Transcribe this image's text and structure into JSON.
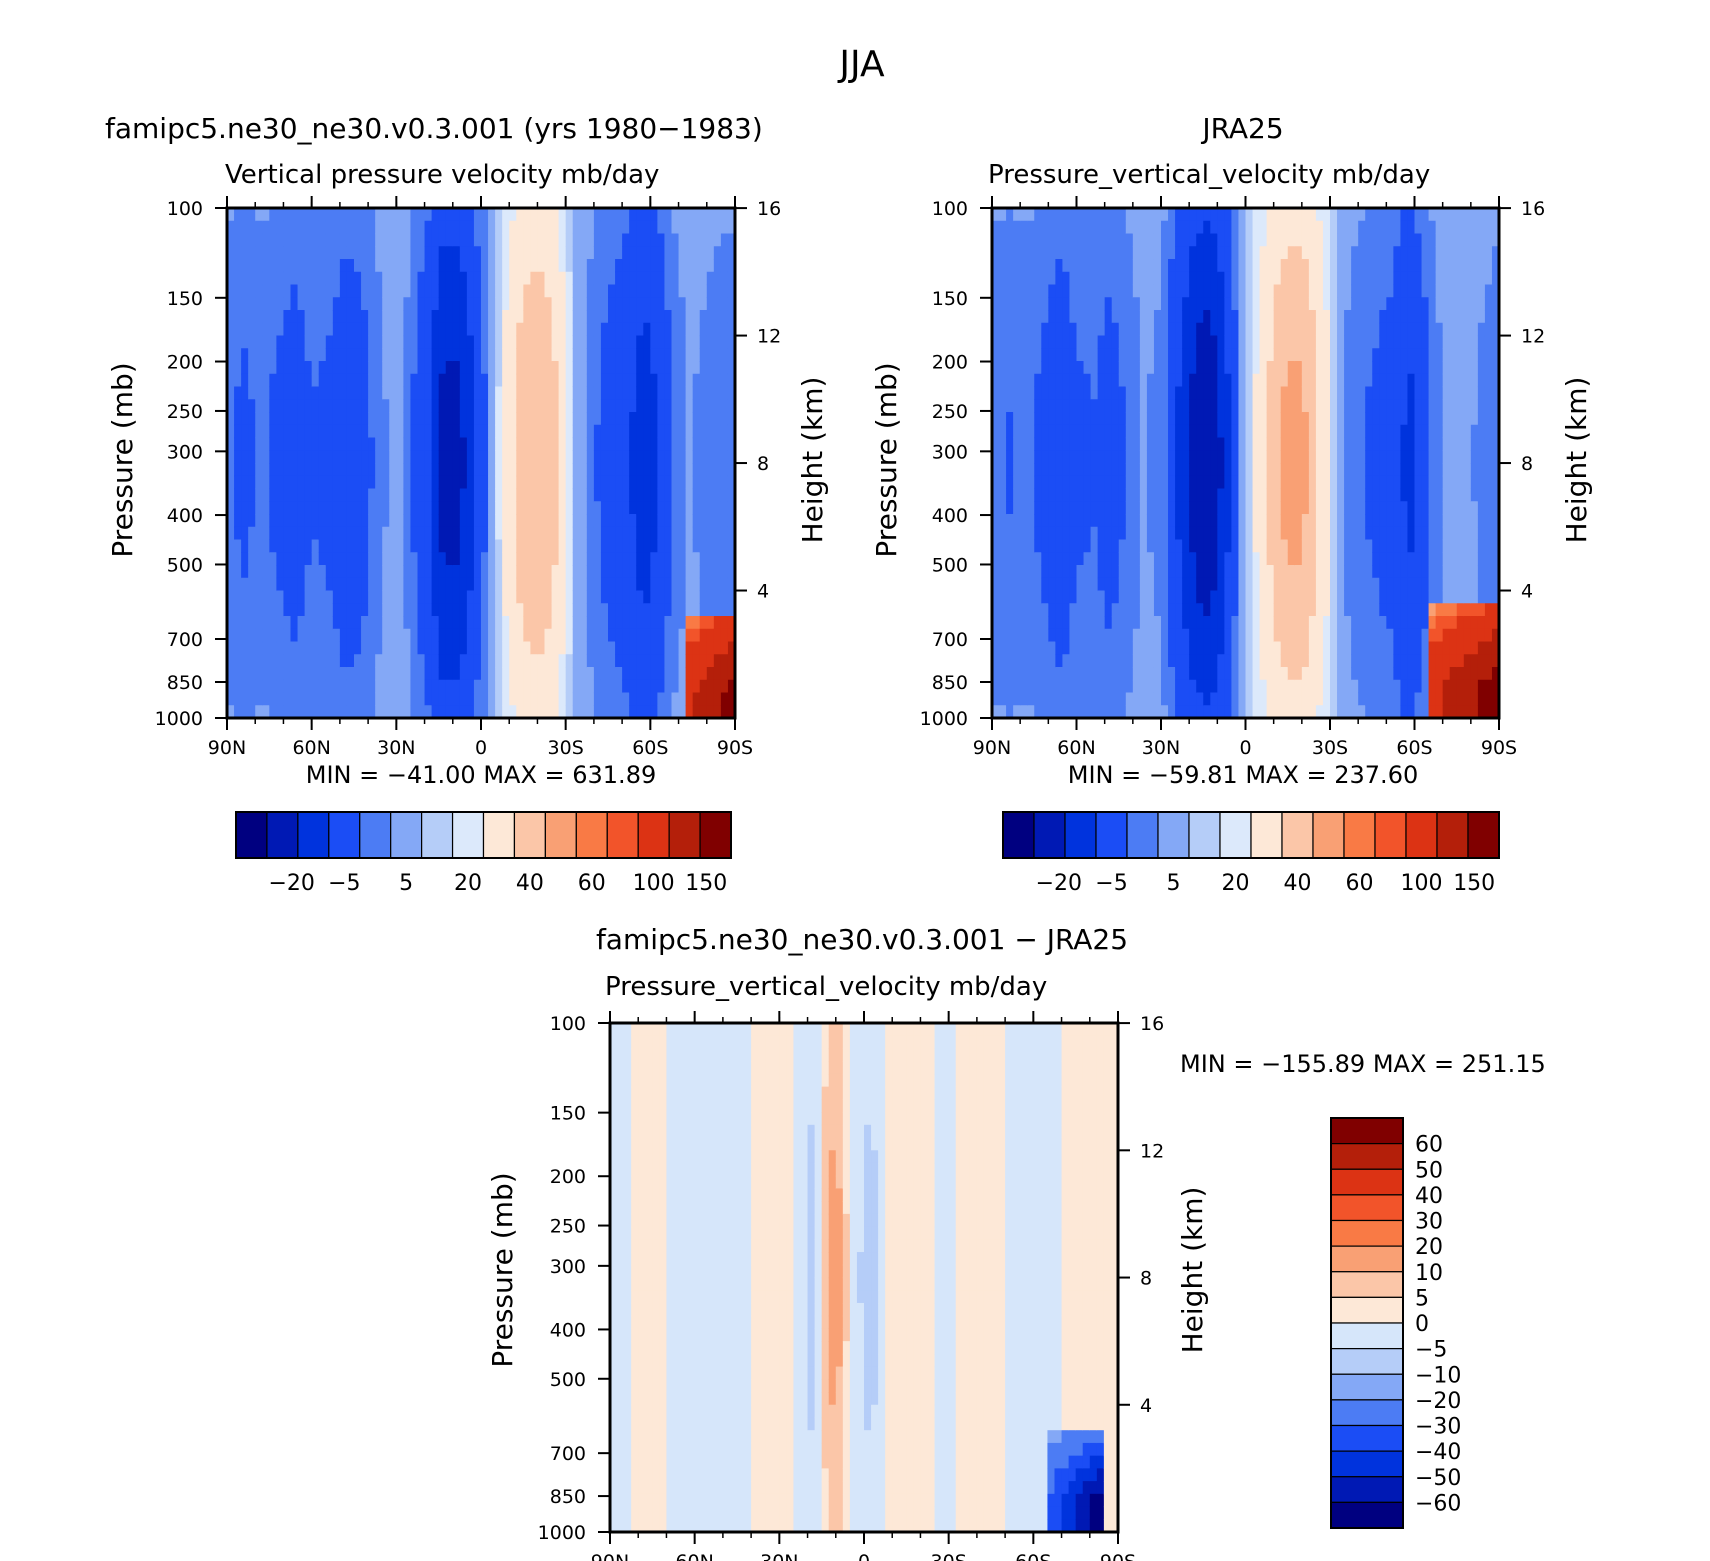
{
  "figure": {
    "title": "JJA"
  },
  "colors": {
    "main_scale": [
      "#000080",
      "#0019b4",
      "#0033dd",
      "#1b4df5",
      "#4c7cf4",
      "#84a8f6",
      "#b5cdf8",
      "#dce9fb",
      "#fde8d7",
      "#fbc6a8",
      "#f9a074",
      "#f97a45",
      "#f2542a",
      "#dc3314",
      "#b41f0a",
      "#800000"
    ],
    "diff_scale": [
      "#000080",
      "#0019b4",
      "#0033dd",
      "#1b4df5",
      "#4c7cf4",
      "#84a8f6",
      "#b5cdf8",
      "#d6e6fa",
      "#fde8d7",
      "#fbc6a8",
      "#f9a074",
      "#f97a45",
      "#f2542a",
      "#dc3314",
      "#b41f0a",
      "#800000"
    ]
  },
  "chart_data": [
    {
      "type": "heatmap",
      "title": "famipc5.ne30_ne30.v0.3.001 (yrs 1980−1983)",
      "subtitle": "Vertical pressure velocity   mb/day",
      "xlabel": "",
      "ylabel": "Pressure (mb)",
      "ylabel_right": "Height (km)",
      "x_ticks": [
        "90N",
        "60N",
        "30N",
        "0",
        "30S",
        "60S",
        "90S"
      ],
      "y_ticks": [
        "100",
        "150",
        "200",
        "250",
        "300",
        "400",
        "500",
        "700",
        "850",
        "1000"
      ],
      "y_ticks_right": [
        "16",
        "12",
        "8",
        "4"
      ],
      "y_scale": "log",
      "ylim": [
        1000,
        100
      ],
      "xlim": [
        90,
        -90
      ],
      "stats": "MIN = −41.00   MAX = 631.89",
      "colorbar_labels": [
        "−20",
        "−5",
        "5",
        "20",
        "40",
        "60",
        "100",
        "150"
      ],
      "colorbar_orientation": "horizontal",
      "profile": [
        {
          "lat": 90,
          "v": -8
        },
        {
          "lat": 84,
          "v": -10
        },
        {
          "lat": 78,
          "v": -8
        },
        {
          "lat": 72,
          "v": -10
        },
        {
          "lat": 66,
          "v": -12
        },
        {
          "lat": 60,
          "v": -9
        },
        {
          "lat": 54,
          "v": -10
        },
        {
          "lat": 48,
          "v": -14
        },
        {
          "lat": 42,
          "v": -12
        },
        {
          "lat": 36,
          "v": -6
        },
        {
          "lat": 30,
          "v": -2
        },
        {
          "lat": 26,
          "v": -6
        },
        {
          "lat": 22,
          "v": -12
        },
        {
          "lat": 18,
          "v": -18
        },
        {
          "lat": 14,
          "v": -28
        },
        {
          "lat": 10,
          "v": -30
        },
        {
          "lat": 6,
          "v": -26
        },
        {
          "lat": 2,
          "v": -16
        },
        {
          "lat": -2,
          "v": -8
        },
        {
          "lat": -6,
          "v": 4
        },
        {
          "lat": -10,
          "v": 14
        },
        {
          "lat": -14,
          "v": 22
        },
        {
          "lat": -18,
          "v": 26
        },
        {
          "lat": -22,
          "v": 26
        },
        {
          "lat": -26,
          "v": 20
        },
        {
          "lat": -30,
          "v": 10
        },
        {
          "lat": -34,
          "v": -2
        },
        {
          "lat": -40,
          "v": -8
        },
        {
          "lat": -46,
          "v": -12
        },
        {
          "lat": -52,
          "v": -16
        },
        {
          "lat": -58,
          "v": -22
        },
        {
          "lat": -62,
          "v": -18
        },
        {
          "lat": -68,
          "v": -8
        },
        {
          "lat": -74,
          "v": -4
        },
        {
          "lat": -80,
          "v": -6
        },
        {
          "lat": -86,
          "v": -8
        },
        {
          "lat": -90,
          "v": -8
        }
      ],
      "polar_feature": {
        "lat_start": -72,
        "lat_end": -90,
        "p_top": 620,
        "v_max": 150,
        "sign": 1
      }
    },
    {
      "type": "heatmap",
      "title": "JRA25",
      "subtitle": "Pressure_vertical_velocity   mb/day",
      "xlabel": "",
      "ylabel": "Pressure (mb)",
      "ylabel_right": "Height (km)",
      "x_ticks": [
        "90N",
        "60N",
        "30N",
        "0",
        "30S",
        "60S",
        "90S"
      ],
      "y_ticks": [
        "100",
        "150",
        "200",
        "250",
        "300",
        "400",
        "500",
        "700",
        "850",
        "1000"
      ],
      "y_ticks_right": [
        "16",
        "12",
        "8",
        "4"
      ],
      "y_scale": "log",
      "ylim": [
        1000,
        100
      ],
      "xlim": [
        90,
        -90
      ],
      "stats": "MIN = −59.81   MAX = 237.60",
      "colorbar_labels": [
        "−20",
        "−5",
        "5",
        "20",
        "40",
        "60",
        "100",
        "150"
      ],
      "colorbar_orientation": "horizontal",
      "profile": [
        {
          "lat": 90,
          "v": -8
        },
        {
          "lat": 84,
          "v": -9
        },
        {
          "lat": 78,
          "v": -8
        },
        {
          "lat": 72,
          "v": -10
        },
        {
          "lat": 66,
          "v": -14
        },
        {
          "lat": 60,
          "v": -10
        },
        {
          "lat": 54,
          "v": -9
        },
        {
          "lat": 48,
          "v": -12
        },
        {
          "lat": 42,
          "v": -8
        },
        {
          "lat": 36,
          "v": -4
        },
        {
          "lat": 30,
          "v": -6
        },
        {
          "lat": 26,
          "v": -14
        },
        {
          "lat": 22,
          "v": -22
        },
        {
          "lat": 18,
          "v": -30
        },
        {
          "lat": 14,
          "v": -34
        },
        {
          "lat": 10,
          "v": -30
        },
        {
          "lat": 6,
          "v": -18
        },
        {
          "lat": 2,
          "v": -6
        },
        {
          "lat": -2,
          "v": 6
        },
        {
          "lat": -6,
          "v": 14
        },
        {
          "lat": -10,
          "v": 22
        },
        {
          "lat": -14,
          "v": 28
        },
        {
          "lat": -18,
          "v": 30
        },
        {
          "lat": -22,
          "v": 26
        },
        {
          "lat": -26,
          "v": 18
        },
        {
          "lat": -30,
          "v": 8
        },
        {
          "lat": -34,
          "v": -4
        },
        {
          "lat": -40,
          "v": -8
        },
        {
          "lat": -46,
          "v": -10
        },
        {
          "lat": -52,
          "v": -12
        },
        {
          "lat": -58,
          "v": -20
        },
        {
          "lat": -62,
          "v": -14
        },
        {
          "lat": -68,
          "v": -6
        },
        {
          "lat": -74,
          "v": 0
        },
        {
          "lat": -80,
          "v": -4
        },
        {
          "lat": -86,
          "v": -6
        },
        {
          "lat": -90,
          "v": -8
        }
      ],
      "polar_feature": {
        "lat_start": -66,
        "lat_end": -90,
        "p_top": 600,
        "v_max": 160,
        "sign": 1
      }
    },
    {
      "type": "heatmap",
      "title": "famipc5.ne30_ne30.v0.3.001 − JRA25",
      "subtitle": "Pressure_vertical_velocity   mb/day",
      "xlabel": "",
      "ylabel": "Pressure (mb)",
      "ylabel_right": "Height (km)",
      "x_ticks": [
        "90N",
        "60N",
        "30N",
        "0",
        "30S",
        "60S",
        "90S"
      ],
      "y_ticks": [
        "100",
        "150",
        "200",
        "250",
        "300",
        "400",
        "500",
        "700",
        "850",
        "1000"
      ],
      "y_ticks_right": [
        "16",
        "12",
        "8",
        "4"
      ],
      "y_scale": "log",
      "ylim": [
        1000,
        100
      ],
      "xlim": [
        90,
        -90
      ],
      "stats": "MIN = −155.89   MAX = 251.15",
      "colorbar_labels": [
        "60",
        "50",
        "40",
        "30",
        "20",
        "10",
        "5",
        "0",
        "−5",
        "−10",
        "−20",
        "−30",
        "−40",
        "−50",
        "−60"
      ],
      "colorbar_orientation": "vertical",
      "profile": [
        {
          "lat": 90,
          "v": -2
        },
        {
          "lat": 84,
          "v": -1
        },
        {
          "lat": 78,
          "v": 2
        },
        {
          "lat": 72,
          "v": 1
        },
        {
          "lat": 66,
          "v": -2
        },
        {
          "lat": 60,
          "v": -1
        },
        {
          "lat": 54,
          "v": -2
        },
        {
          "lat": 48,
          "v": -3
        },
        {
          "lat": 42,
          "v": -2
        },
        {
          "lat": 36,
          "v": 2
        },
        {
          "lat": 30,
          "v": 3
        },
        {
          "lat": 26,
          "v": 2
        },
        {
          "lat": 22,
          "v": -3
        },
        {
          "lat": 18,
          "v": -6
        },
        {
          "lat": 14,
          "v": 6
        },
        {
          "lat": 10,
          "v": 12
        },
        {
          "lat": 6,
          "v": 4
        },
        {
          "lat": 2,
          "v": -4
        },
        {
          "lat": -2,
          "v": -6
        },
        {
          "lat": -6,
          "v": -4
        },
        {
          "lat": -10,
          "v": 2
        },
        {
          "lat": -14,
          "v": 3
        },
        {
          "lat": -18,
          "v": 3
        },
        {
          "lat": -22,
          "v": 2
        },
        {
          "lat": -26,
          "v": -2
        },
        {
          "lat": -30,
          "v": -1
        },
        {
          "lat": -34,
          "v": 2
        },
        {
          "lat": -40,
          "v": 3
        },
        {
          "lat": -46,
          "v": 2
        },
        {
          "lat": -52,
          "v": -2
        },
        {
          "lat": -58,
          "v": -3
        },
        {
          "lat": -62,
          "v": -2
        },
        {
          "lat": -68,
          "v": -2
        },
        {
          "lat": -74,
          "v": 2
        },
        {
          "lat": -80,
          "v": 3
        },
        {
          "lat": -86,
          "v": 2
        },
        {
          "lat": -90,
          "v": 1
        }
      ],
      "polar_feature": {
        "lat_start": -66,
        "lat_end": -86,
        "p_top": 620,
        "v_max": 65,
        "sign": -1
      }
    }
  ]
}
